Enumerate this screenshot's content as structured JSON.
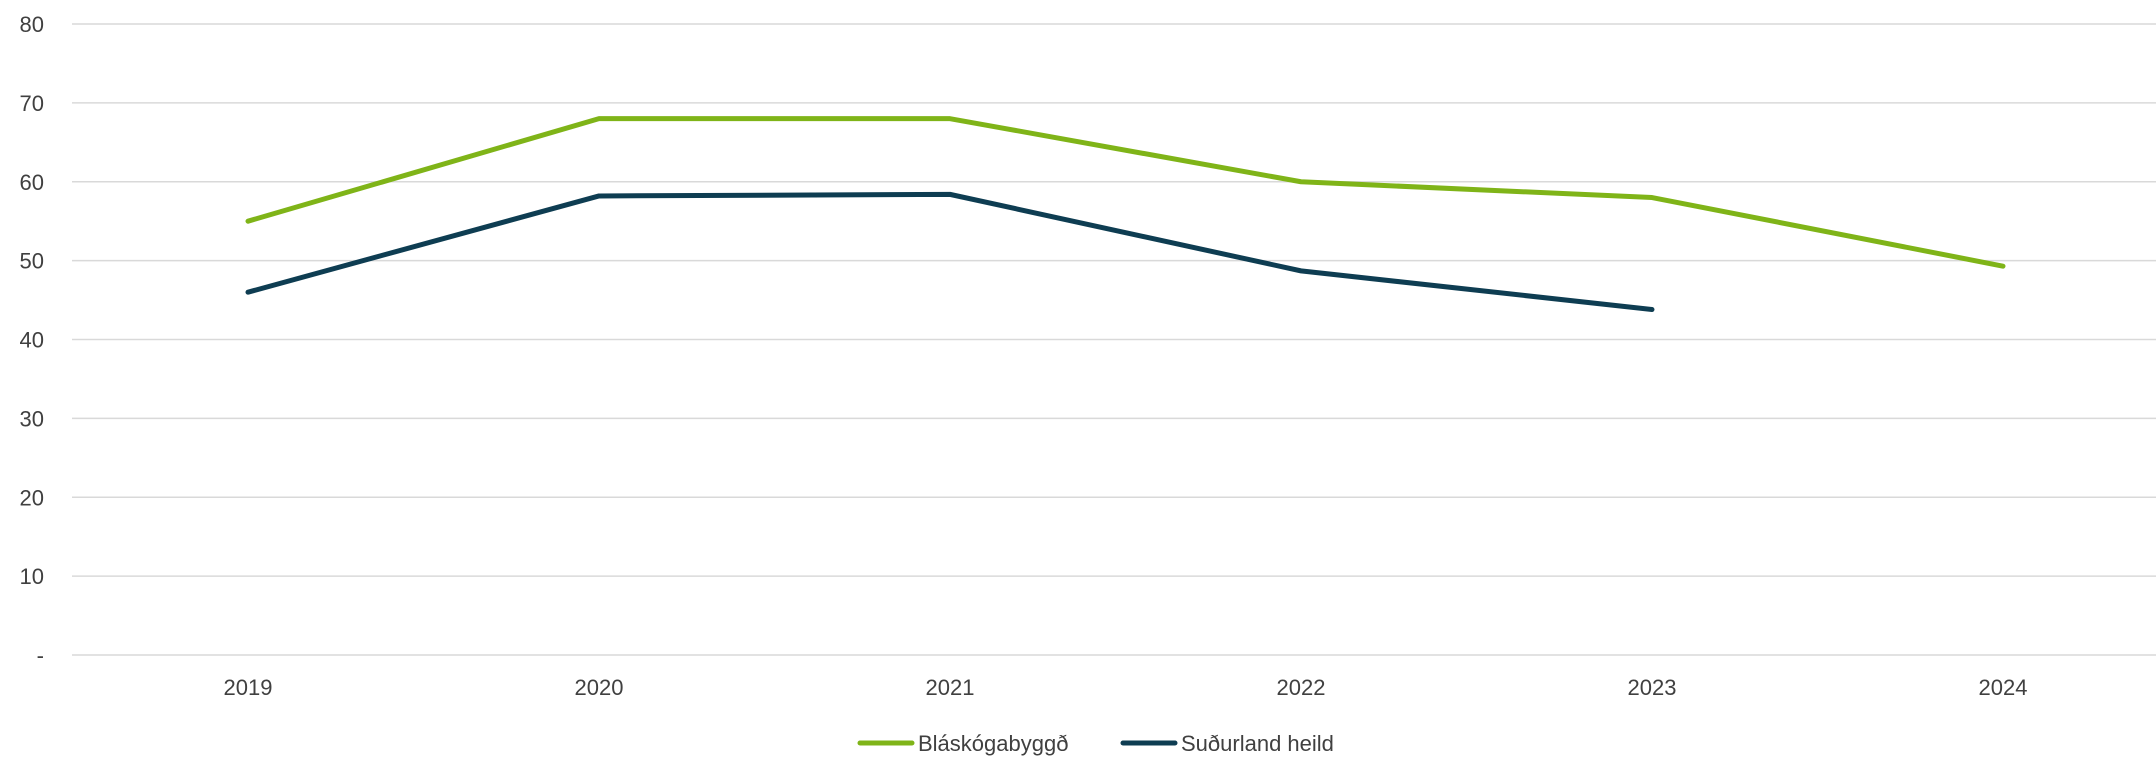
{
  "chart_data": {
    "type": "line",
    "title": "",
    "xlabel": "",
    "ylabel": "",
    "categories": [
      "2019",
      "2020",
      "2021",
      "2022",
      "2023",
      "2024"
    ],
    "ylim": [
      0,
      80
    ],
    "y_ticks": [
      {
        "value": 0,
        "label": "-"
      },
      {
        "value": 10,
        "label": "10"
      },
      {
        "value": 20,
        "label": "20"
      },
      {
        "value": 30,
        "label": "30"
      },
      {
        "value": 40,
        "label": "40"
      },
      {
        "value": 50,
        "label": "50"
      },
      {
        "value": 60,
        "label": "60"
      },
      {
        "value": 70,
        "label": "70"
      },
      {
        "value": 80,
        "label": "80"
      }
    ],
    "grid": true,
    "legend_position": "bottom-center",
    "series": [
      {
        "name": "Bláskógabyggð",
        "color": "#7fb418",
        "values": [
          55,
          68,
          68,
          60,
          58,
          49.3
        ]
      },
      {
        "name": "Suðurland heild",
        "color": "#0e3d52",
        "values": [
          46,
          58.2,
          58.4,
          48.7,
          43.8,
          null
        ]
      }
    ]
  }
}
